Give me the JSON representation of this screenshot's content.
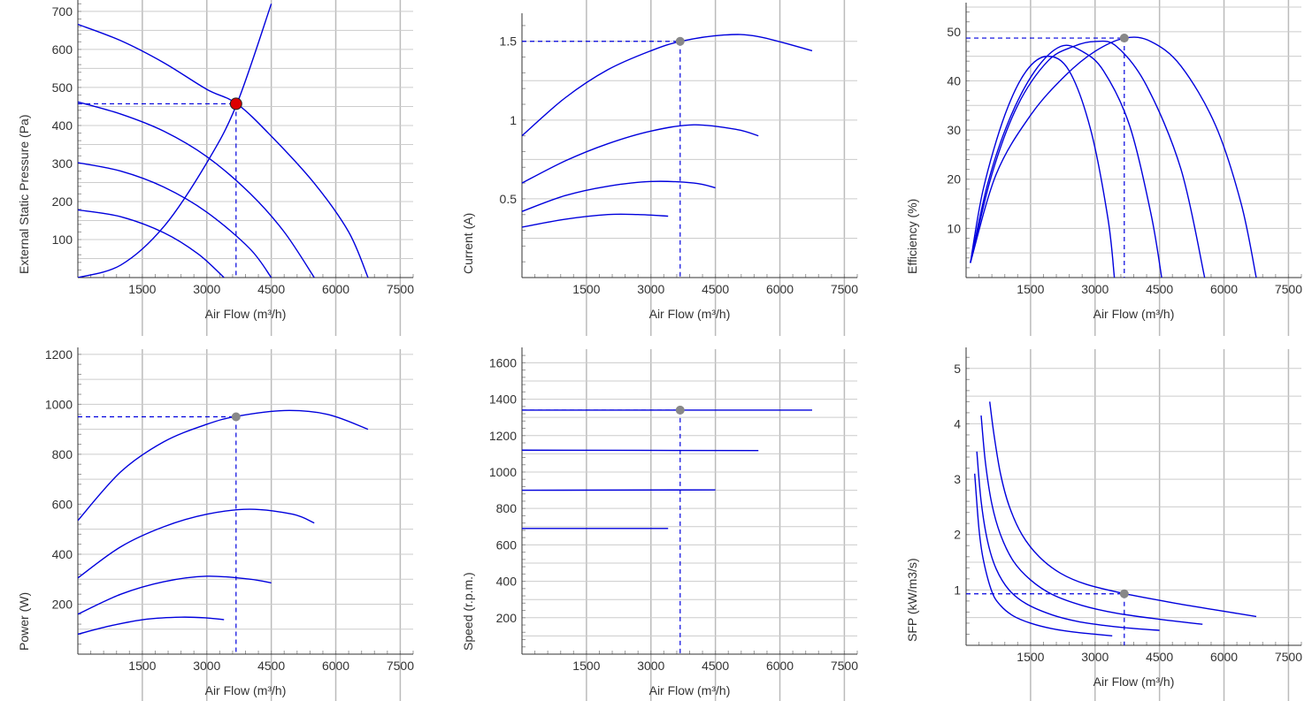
{
  "theme": {
    "curve_color": "#0000dd",
    "grid_color": "#cccccc",
    "grid_major_color": "#bbbbbb",
    "axis_color": "#333333",
    "operating_point_color": "#888888",
    "highlight_point_color": "#dd0000"
  },
  "chart_data": [
    {
      "id": "pressure",
      "type": "line",
      "xlabel": "Air Flow (m³/h)",
      "ylabel": "External Static Pressure (Pa)",
      "xlim": [
        0,
        7800
      ],
      "ylim": [
        0,
        730
      ],
      "xticks": [
        1500,
        3000,
        4500,
        6000,
        7500
      ],
      "yticks": [
        100,
        200,
        300,
        400,
        500,
        600,
        700
      ],
      "series": [
        {
          "x": [
            0,
            1000,
            2000,
            3000,
            3700,
            4500,
            5500,
            6300,
            6750
          ],
          "y": [
            666,
            623,
            565,
            495,
            457,
            372,
            248,
            120,
            0
          ]
        },
        {
          "x": [
            0,
            1000,
            2000,
            3000,
            4000,
            4800,
            5500
          ],
          "y": [
            462,
            430,
            385,
            318,
            222,
            120,
            0
          ]
        },
        {
          "x": [
            0,
            1000,
            2000,
            3000,
            4000,
            4500
          ],
          "y": [
            302,
            280,
            238,
            172,
            76,
            0
          ]
        },
        {
          "x": [
            0,
            1000,
            2000,
            2800,
            3400
          ],
          "y": [
            178,
            160,
            118,
            62,
            0
          ]
        },
        {
          "x": [
            0,
            1000,
            2000,
            3000,
            3700,
            4500
          ],
          "y": [
            0,
            33,
            134,
            302,
            457,
            720
          ],
          "role": "system-curve"
        }
      ],
      "operating_point": {
        "x": 3680,
        "y": 457,
        "style": "highlight"
      }
    },
    {
      "id": "current",
      "type": "line",
      "xlabel": "Air Flow (m³/h)",
      "ylabel": "Current (A)",
      "xlim": [
        0,
        7800
      ],
      "ylim": [
        0,
        1.65
      ],
      "xticks": [
        1500,
        3000,
        4500,
        6000,
        7500
      ],
      "yticks": [
        0.5,
        1,
        1.5
      ],
      "series": [
        {
          "x": [
            0,
            1000,
            2000,
            3000,
            3700,
            4700,
            5500,
            6750
          ],
          "y": [
            0.9,
            1.14,
            1.32,
            1.44,
            1.5,
            1.54,
            1.53,
            1.44
          ]
        },
        {
          "x": [
            0,
            1000,
            2000,
            3000,
            4000,
            5000,
            5500
          ],
          "y": [
            0.6,
            0.74,
            0.85,
            0.93,
            0.97,
            0.94,
            0.9
          ]
        },
        {
          "x": [
            0,
            1000,
            2000,
            3000,
            4000,
            4500
          ],
          "y": [
            0.42,
            0.52,
            0.58,
            0.61,
            0.6,
            0.57
          ]
        },
        {
          "x": [
            0,
            1000,
            2000,
            2700,
            3400
          ],
          "y": [
            0.32,
            0.37,
            0.4,
            0.4,
            0.39
          ]
        }
      ],
      "operating_point": {
        "x": 3680,
        "y": 1.5,
        "style": "normal"
      }
    },
    {
      "id": "efficiency",
      "type": "line",
      "xlabel": "Air Flow (m³/h)",
      "ylabel": "Efficiency (%)",
      "xlim": [
        0,
        7800
      ],
      "ylim": [
        0,
        55
      ],
      "xticks": [
        1500,
        3000,
        4500,
        6000,
        7500
      ],
      "yticks": [
        10,
        20,
        30,
        40,
        50
      ],
      "series": [
        {
          "x": [
            100,
            400,
            900,
            1400,
            1900,
            2400,
            2900,
            3300,
            3450
          ],
          "y": [
            3,
            18,
            33,
            42,
            45,
            42,
            30,
            12,
            0
          ]
        },
        {
          "x": [
            100,
            500,
            1000,
            1600,
            2200,
            2700,
            3200,
            3800,
            4300,
            4550
          ],
          "y": [
            3,
            19,
            32,
            42,
            47,
            46,
            42,
            31,
            13,
            0
          ]
        },
        {
          "x": [
            100,
            600,
            1200,
            1900,
            2500,
            3000,
            3500,
            4200,
            5000,
            5550
          ],
          "y": [
            3,
            21,
            35,
            44,
            47,
            48,
            47,
            39,
            22,
            0
          ]
        },
        {
          "x": [
            100,
            700,
            1500,
            2300,
            3000,
            3700,
            4300,
            5000,
            5800,
            6400,
            6750
          ],
          "y": [
            3,
            21,
            33,
            41,
            46,
            48.7,
            48,
            43,
            31,
            15,
            0
          ]
        }
      ],
      "operating_point": {
        "x": 3680,
        "y": 48.7,
        "style": "normal"
      }
    },
    {
      "id": "power",
      "type": "line",
      "xlabel": "Air Flow (m³/h)",
      "ylabel": "Power (W)",
      "xlim": [
        0,
        7800
      ],
      "ylim": [
        0,
        1210
      ],
      "xticks": [
        1500,
        3000,
        4500,
        6000,
        7500
      ],
      "yticks": [
        200,
        400,
        600,
        800,
        1000,
        1200
      ],
      "series": [
        {
          "x": [
            0,
            1000,
            2000,
            3000,
            3700,
            4800,
            5800,
            6750
          ],
          "y": [
            535,
            730,
            850,
            920,
            952,
            975,
            960,
            900
          ]
        },
        {
          "x": [
            0,
            1000,
            2000,
            3000,
            4000,
            5000,
            5500
          ],
          "y": [
            305,
            430,
            510,
            560,
            580,
            560,
            525
          ]
        },
        {
          "x": [
            0,
            1000,
            2000,
            3000,
            4000,
            4500
          ],
          "y": [
            160,
            240,
            290,
            312,
            300,
            285
          ]
        },
        {
          "x": [
            0,
            800,
            1600,
            2400,
            3000,
            3400
          ],
          "y": [
            80,
            115,
            140,
            148,
            145,
            138
          ]
        }
      ],
      "operating_point": {
        "x": 3680,
        "y": 950,
        "style": "normal"
      }
    },
    {
      "id": "speed",
      "type": "line",
      "xlabel": "Air Flow (m³/h)",
      "ylabel": "Speed (r.p.m.)",
      "xlim": [
        0,
        7800
      ],
      "ylim": [
        0,
        1660
      ],
      "xticks": [
        1500,
        3000,
        4500,
        6000,
        7500
      ],
      "yticks": [
        200,
        400,
        600,
        800,
        1000,
        1200,
        1400,
        1600
      ],
      "series": [
        {
          "x": [
            0,
            6750
          ],
          "y": [
            1340,
            1340
          ]
        },
        {
          "x": [
            0,
            5500
          ],
          "y": [
            1120,
            1118
          ]
        },
        {
          "x": [
            0,
            4500
          ],
          "y": [
            900,
            902
          ]
        },
        {
          "x": [
            0,
            3400
          ],
          "y": [
            690,
            690
          ]
        }
      ],
      "operating_point": {
        "x": 3680,
        "y": 1340,
        "style": "normal"
      }
    },
    {
      "id": "sfp",
      "type": "line",
      "xlabel": "Air Flow (m³/h)",
      "ylabel": "SFP (kW/m3/s)",
      "xlim": [
        0,
        7800
      ],
      "ylim": [
        0,
        5.3
      ],
      "xticks": [
        1500,
        3000,
        4500,
        6000,
        7500
      ],
      "yticks": [
        1,
        2,
        3,
        4,
        5
      ],
      "series": [
        {
          "x": [
            200,
            300,
            400,
            600,
            800,
            1100,
            1500,
            2000,
            2500,
            3000,
            3400
          ],
          "y": [
            3.1,
            2.1,
            1.55,
            0.97,
            0.72,
            0.53,
            0.4,
            0.3,
            0.24,
            0.2,
            0.17
          ]
        },
        {
          "x": [
            250,
            350,
            500,
            700,
            1000,
            1400,
            2000,
            2600,
            3200,
            3800,
            4500
          ],
          "y": [
            3.5,
            2.6,
            1.88,
            1.38,
            1.0,
            0.75,
            0.55,
            0.43,
            0.36,
            0.31,
            0.27
          ]
        },
        {
          "x": [
            350,
            450,
            600,
            800,
            1100,
            1500,
            2000,
            2700,
            3500,
            4500,
            5500
          ],
          "y": [
            4.15,
            3.3,
            2.55,
            2.0,
            1.52,
            1.18,
            0.92,
            0.72,
            0.58,
            0.47,
            0.38
          ]
        },
        {
          "x": [
            550,
            650,
            800,
            1000,
            1300,
            1700,
            2200,
            2800,
            3700,
            4800,
            5800,
            6750
          ],
          "y": [
            4.4,
            3.8,
            3.1,
            2.52,
            2.0,
            1.6,
            1.3,
            1.1,
            0.93,
            0.77,
            0.64,
            0.52
          ]
        }
      ],
      "operating_point": {
        "x": 3680,
        "y": 0.93,
        "style": "normal"
      }
    }
  ]
}
